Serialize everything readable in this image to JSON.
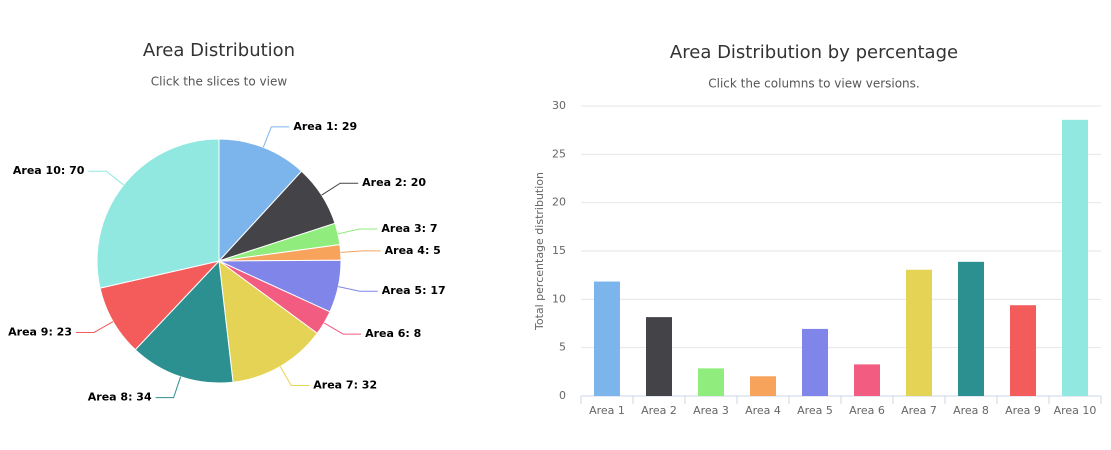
{
  "chart_data": [
    {
      "type": "pie",
      "title": "Area Distribution",
      "subtitle": "Click the slices to view",
      "values": [
        29,
        20,
        7,
        5,
        17,
        8,
        32,
        34,
        23,
        70
      ],
      "value_labels": [
        "Area 1: 29",
        "Area 2: 20",
        "Area 3: 7",
        "Area 4: 5",
        "Area 5: 17",
        "Area 6: 8",
        "Area 7: 32",
        "Area 8: 34",
        "Area 9: 23",
        "Area 10: 70"
      ],
      "colors": [
        "#7cb5ec",
        "#434348",
        "#90ed7d",
        "#f7a35c",
        "#8085e9",
        "#f15c80",
        "#e4d354",
        "#2b908f",
        "#f45b5b",
        "#91e8e1"
      ]
    },
    {
      "type": "bar",
      "title": "Area Distribution by percentage",
      "subtitle": "Click the columns to view versions.",
      "y_label": "Total percentage distribution",
      "categories": [
        "Area 1",
        "Area 2",
        "Area 3",
        "Area 4",
        "Area 5",
        "Area 6",
        "Area 7",
        "Area 8",
        "Area 9",
        "Area 10"
      ],
      "values": [
        11.84,
        8.16,
        2.86,
        2.04,
        6.94,
        3.27,
        13.06,
        13.88,
        9.39,
        28.57
      ],
      "colors": [
        "#7cb5ec",
        "#434348",
        "#90ed7d",
        "#f7a35c",
        "#8085e9",
        "#f15c80",
        "#e4d354",
        "#2b908f",
        "#f45b5b",
        "#91e8e1"
      ],
      "ylim": [
        0,
        30
      ],
      "yticks": [
        0,
        5,
        10,
        15,
        20,
        25,
        30
      ],
      "grid": true
    }
  ]
}
